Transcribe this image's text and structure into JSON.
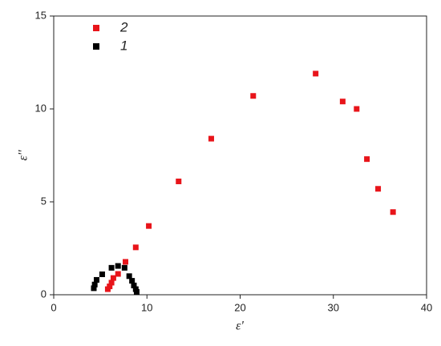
{
  "chart_data": {
    "type": "scatter",
    "x_label": "ε'",
    "y_label": "ε''",
    "xlim": [
      0,
      40
    ],
    "ylim": [
      0,
      15
    ],
    "xticks": [
      0,
      10,
      20,
      30,
      40
    ],
    "yticks": [
      0,
      5,
      10,
      15
    ],
    "legend": "upper left",
    "series": [
      {
        "name": "2",
        "color": "#e8141a",
        "x": [
          5.8,
          6.0,
          6.2,
          6.4,
          6.9,
          7.7,
          8.8,
          10.2,
          13.4,
          16.9,
          21.4,
          28.1,
          31.0,
          32.5,
          33.6,
          34.8,
          36.4
        ],
        "values": [
          0.3,
          0.45,
          0.65,
          0.9,
          1.12,
          1.77,
          2.55,
          3.7,
          6.1,
          8.4,
          10.7,
          11.9,
          10.4,
          10.0,
          7.3,
          5.7,
          4.45
        ]
      },
      {
        "name": "1",
        "color": "#000000",
        "x": [
          4.3,
          4.4,
          4.6,
          5.2,
          6.2,
          6.9,
          7.6,
          8.1,
          8.4,
          8.6,
          8.8,
          8.9
        ],
        "values": [
          0.35,
          0.55,
          0.8,
          1.1,
          1.45,
          1.55,
          1.45,
          1.0,
          0.75,
          0.5,
          0.3,
          0.15
        ]
      }
    ]
  }
}
